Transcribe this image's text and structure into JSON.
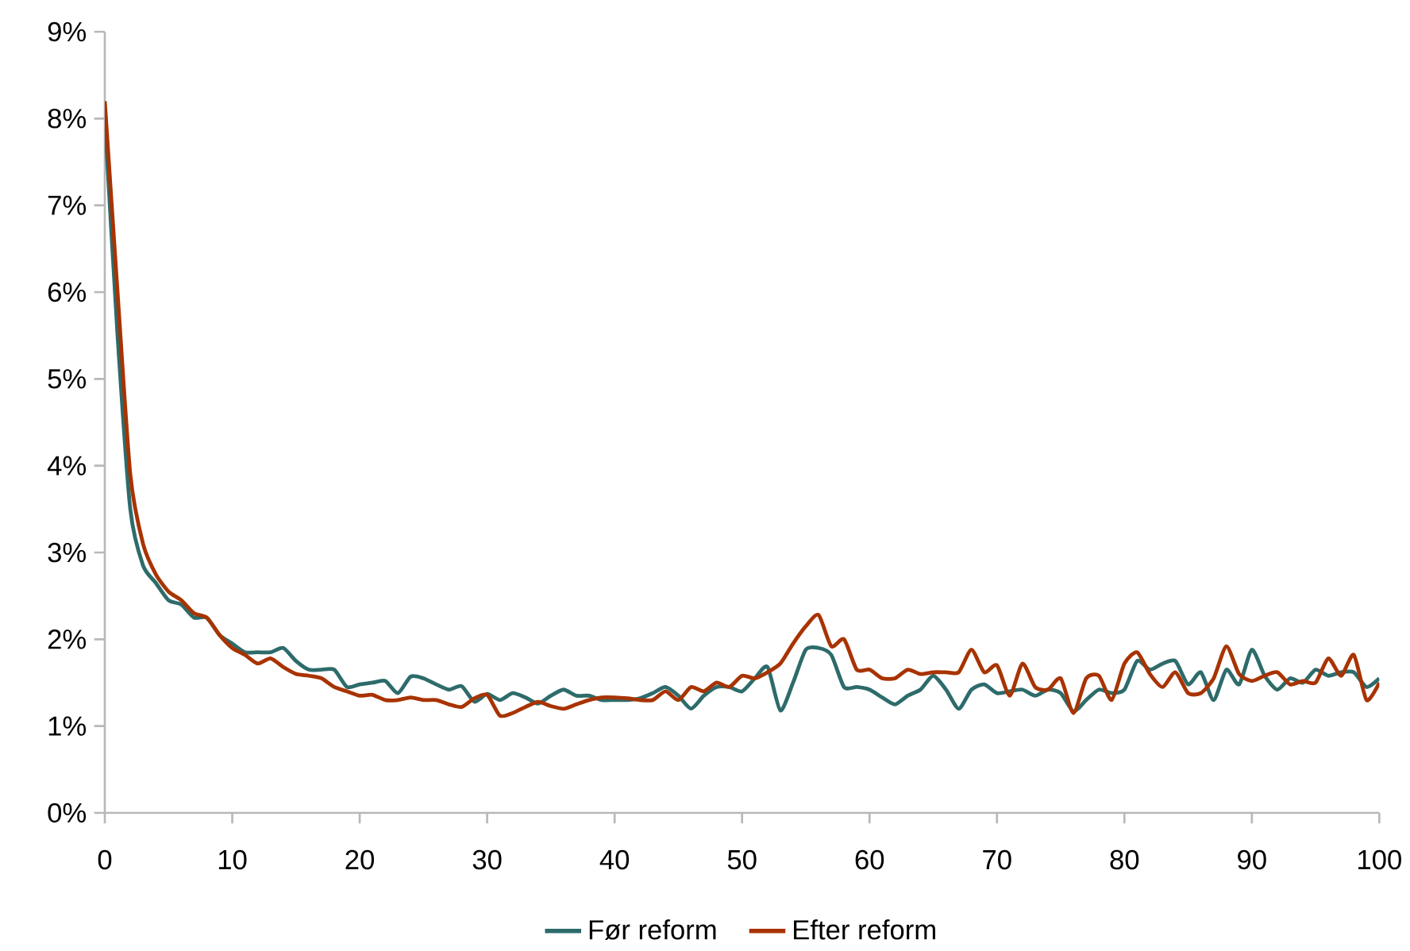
{
  "chart_data": {
    "type": "line",
    "x": [
      0,
      1,
      2,
      3,
      4,
      5,
      6,
      7,
      8,
      9,
      10,
      11,
      12,
      13,
      14,
      15,
      16,
      17,
      18,
      19,
      20,
      21,
      22,
      23,
      24,
      25,
      26,
      27,
      28,
      29,
      30,
      31,
      32,
      33,
      34,
      35,
      36,
      37,
      38,
      39,
      40,
      41,
      42,
      43,
      44,
      45,
      46,
      47,
      48,
      49,
      50,
      51,
      52,
      53,
      54,
      55,
      56,
      57,
      58,
      59,
      60,
      61,
      62,
      63,
      64,
      65,
      66,
      67,
      68,
      69,
      70,
      71,
      72,
      73,
      74,
      75,
      76,
      77,
      78,
      79,
      80,
      81,
      82,
      83,
      84,
      85,
      86,
      87,
      88,
      89,
      90,
      91,
      92,
      93,
      94,
      95,
      96,
      97,
      98,
      99,
      100
    ],
    "series": [
      {
        "name": "Før reform",
        "color": "#2e6b6b",
        "values": [
          8.0,
          5.5,
          3.5,
          2.85,
          2.65,
          2.45,
          2.4,
          2.25,
          2.25,
          2.05,
          1.95,
          1.85,
          1.85,
          1.85,
          1.9,
          1.75,
          1.65,
          1.65,
          1.65,
          1.45,
          1.48,
          1.5,
          1.52,
          1.38,
          1.57,
          1.55,
          1.48,
          1.42,
          1.46,
          1.28,
          1.37,
          1.3,
          1.38,
          1.33,
          1.26,
          1.35,
          1.42,
          1.35,
          1.35,
          1.3,
          1.3,
          1.3,
          1.32,
          1.38,
          1.45,
          1.35,
          1.2,
          1.35,
          1.45,
          1.45,
          1.4,
          1.55,
          1.68,
          1.18,
          1.5,
          1.88,
          1.9,
          1.82,
          1.45,
          1.45,
          1.42,
          1.33,
          1.25,
          1.35,
          1.42,
          1.58,
          1.42,
          1.2,
          1.42,
          1.48,
          1.38,
          1.4,
          1.42,
          1.35,
          1.42,
          1.38,
          1.17,
          1.3,
          1.42,
          1.38,
          1.42,
          1.75,
          1.65,
          1.72,
          1.75,
          1.48,
          1.62,
          1.3,
          1.65,
          1.48,
          1.88,
          1.58,
          1.42,
          1.55,
          1.5,
          1.65,
          1.58,
          1.62,
          1.62,
          1.45,
          1.55
        ]
      },
      {
        "name": "Efter reform",
        "color": "#a83300",
        "values": [
          8.2,
          6.0,
          3.9,
          3.1,
          2.75,
          2.55,
          2.45,
          2.3,
          2.25,
          2.05,
          1.9,
          1.82,
          1.72,
          1.78,
          1.68,
          1.6,
          1.58,
          1.55,
          1.45,
          1.4,
          1.35,
          1.36,
          1.3,
          1.3,
          1.33,
          1.3,
          1.3,
          1.25,
          1.22,
          1.32,
          1.36,
          1.12,
          1.15,
          1.22,
          1.28,
          1.23,
          1.2,
          1.25,
          1.3,
          1.33,
          1.33,
          1.32,
          1.3,
          1.3,
          1.4,
          1.3,
          1.45,
          1.4,
          1.5,
          1.45,
          1.58,
          1.55,
          1.62,
          1.72,
          1.95,
          2.15,
          2.28,
          1.92,
          2.0,
          1.65,
          1.65,
          1.55,
          1.55,
          1.65,
          1.6,
          1.62,
          1.62,
          1.62,
          1.88,
          1.62,
          1.7,
          1.35,
          1.72,
          1.45,
          1.42,
          1.55,
          1.15,
          1.55,
          1.58,
          1.3,
          1.72,
          1.85,
          1.6,
          1.45,
          1.62,
          1.38,
          1.38,
          1.55,
          1.92,
          1.6,
          1.52,
          1.58,
          1.62,
          1.48,
          1.52,
          1.5,
          1.78,
          1.58,
          1.82,
          1.3,
          1.5
        ]
      }
    ],
    "xlim": [
      0,
      100
    ],
    "xticks": [
      0,
      10,
      20,
      30,
      40,
      50,
      60,
      70,
      80,
      90,
      100
    ],
    "ylim": [
      0,
      9
    ],
    "yticks": [
      {
        "value": 0,
        "label": "0%"
      },
      {
        "value": 1,
        "label": "1%"
      },
      {
        "value": 2,
        "label": "2%"
      },
      {
        "value": 3,
        "label": "3%"
      },
      {
        "value": 4,
        "label": "4%"
      },
      {
        "value": 5,
        "label": "5%"
      },
      {
        "value": 6,
        "label": "6%"
      },
      {
        "value": 7,
        "label": "7%"
      },
      {
        "value": 8,
        "label": "8%"
      },
      {
        "value": 9,
        "label": "9%"
      }
    ],
    "legend": "bottom",
    "marker": "none",
    "line_style": "solid"
  }
}
